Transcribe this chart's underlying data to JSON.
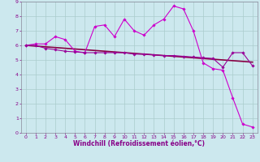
{
  "title": "",
  "xlabel": "Windchill (Refroidissement éolien,°C)",
  "background_color": "#cce8ee",
  "grid_color": "#aacccc",
  "xlim": [
    -0.5,
    23.5
  ],
  "ylim": [
    0,
    9
  ],
  "xticks": [
    0,
    1,
    2,
    3,
    4,
    5,
    6,
    7,
    8,
    9,
    10,
    11,
    12,
    13,
    14,
    15,
    16,
    17,
    18,
    19,
    20,
    21,
    22,
    23
  ],
  "yticks": [
    0,
    1,
    2,
    3,
    4,
    5,
    6,
    7,
    8,
    9
  ],
  "series": [
    {
      "x": [
        0,
        1,
        2,
        3,
        4,
        5,
        6,
        7,
        8,
        9,
        10,
        11,
        12,
        13,
        14,
        15,
        16,
        17,
        18,
        19,
        20,
        21,
        22,
        23
      ],
      "y": [
        6.0,
        6.1,
        6.1,
        6.6,
        6.4,
        5.6,
        5.5,
        7.3,
        7.4,
        6.6,
        7.8,
        7.0,
        6.7,
        7.4,
        7.8,
        8.7,
        8.5,
        7.0,
        4.8,
        4.4,
        4.3,
        2.4,
        0.6,
        0.4
      ],
      "marker": "D",
      "markersize": 1.8,
      "linewidth": 0.8,
      "color": "#cc00cc"
    },
    {
      "x": [
        0,
        1,
        2,
        3,
        4,
        5,
        6,
        7,
        8,
        9,
        10,
        11,
        12,
        13,
        14,
        15,
        16,
        17,
        18,
        19,
        20,
        21,
        22,
        23
      ],
      "y": [
        6.0,
        5.95,
        5.9,
        5.85,
        5.8,
        5.75,
        5.7,
        5.65,
        5.6,
        5.55,
        5.5,
        5.45,
        5.4,
        5.35,
        5.3,
        5.25,
        5.2,
        5.15,
        5.1,
        5.05,
        5.0,
        4.95,
        4.9,
        4.85
      ],
      "marker": null,
      "markersize": 0,
      "linewidth": 1.2,
      "color": "#880044"
    },
    {
      "x": [
        0,
        1,
        2,
        3,
        4,
        5,
        6,
        7,
        8,
        9,
        10,
        11,
        12,
        13,
        14,
        15,
        16,
        17,
        18,
        19,
        20,
        21,
        22,
        23
      ],
      "y": [
        6.0,
        6.0,
        5.8,
        5.7,
        5.6,
        5.55,
        5.5,
        5.5,
        5.5,
        5.5,
        5.5,
        5.4,
        5.4,
        5.35,
        5.3,
        5.3,
        5.25,
        5.2,
        5.15,
        5.1,
        4.5,
        5.5,
        5.5,
        4.6
      ],
      "marker": "D",
      "markersize": 1.8,
      "linewidth": 0.8,
      "color": "#990099"
    }
  ],
  "tick_color": "#880088",
  "label_color": "#880088",
  "xlabel_fontsize": 5.5,
  "tick_fontsize": 4.5
}
